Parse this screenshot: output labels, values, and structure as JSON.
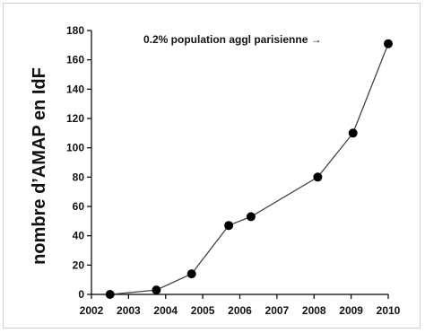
{
  "chart_data": {
    "type": "line",
    "title": "",
    "xlabel": "",
    "ylabel": "nombre d’AMAP en IdF",
    "annotation": "0.2% population aggl parisienne →",
    "xlim": [
      2002,
      2010
    ],
    "ylim": [
      0,
      180
    ],
    "xticks": [
      "2002",
      "2003",
      "2004",
      "2005",
      "2006",
      "2007",
      "2008",
      "2009",
      "2010"
    ],
    "yticks": [
      "0",
      "20",
      "40",
      "60",
      "80",
      "100",
      "120",
      "140",
      "160",
      "180"
    ],
    "grid": false,
    "series": [
      {
        "x": [
          2002.5,
          2003.75,
          2004.7,
          2005.7,
          2006.3,
          2008.1,
          2009.05,
          2010.0
        ],
        "y": [
          0,
          3,
          14,
          47,
          53,
          80,
          110,
          171
        ]
      }
    ],
    "colors": {
      "line": "#444444",
      "marker": "#000000",
      "axis": "#000000"
    }
  }
}
